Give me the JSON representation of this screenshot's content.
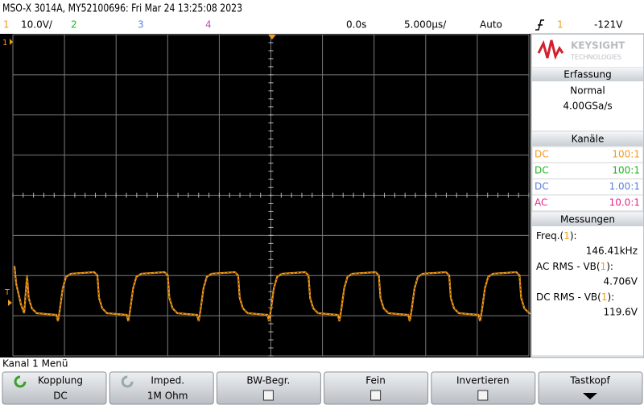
{
  "header": {
    "title": "MSO-X 3014A, MY52100696: Fri Mar 24 13:25:08 2023"
  },
  "status_bar": {
    "ch1_number": "1",
    "ch1_scale": "10.0V/",
    "ch2_number": "2",
    "ch3_number": "3",
    "ch4_number": "4",
    "time_offset": "0.0s",
    "time_scale": "5.000µs/",
    "trigger_mode": "Auto",
    "trigger_source": "1",
    "trigger_level": "-121V"
  },
  "display": {
    "ch1_marker": "1",
    "trigger_marker": "T"
  },
  "side_panel": {
    "brand": "KEYSIGHT",
    "brand_sub": "TECHNOLOGIES",
    "acquisition": {
      "title": "Erfassung",
      "mode": "Normal",
      "sample_rate": "4.00GSa/s"
    },
    "channels": {
      "title": "Kanäle",
      "rows": [
        {
          "coupling": "DC",
          "probe": "100:1"
        },
        {
          "coupling": "DC",
          "probe": "100:1"
        },
        {
          "coupling": "DC",
          "probe": "1.00:1"
        },
        {
          "coupling": "AC",
          "probe": "10.0:1"
        }
      ]
    },
    "measurements": {
      "title": "Messungen",
      "items": [
        {
          "prefix": "Freq.(",
          "channel": "1",
          "suffix": "):",
          "value": "146.41kHz"
        },
        {
          "prefix": "AC RMS - VB(",
          "channel": "1",
          "suffix": "):",
          "value": "4.706V"
        },
        {
          "prefix": "DC RMS - VB(",
          "channel": "1",
          "suffix": "):",
          "value": "119.6V"
        }
      ]
    }
  },
  "softkey_menu": {
    "title": "Kanal 1 Menü",
    "softkeys": [
      {
        "label": "Kopplung",
        "value": "DC"
      },
      {
        "label": "Imped.",
        "value": "1M Ohm"
      },
      {
        "label": "BW-Begr."
      },
      {
        "label": "Fein"
      },
      {
        "label": "Invertieren"
      },
      {
        "label": "Tastkopf"
      }
    ]
  }
}
